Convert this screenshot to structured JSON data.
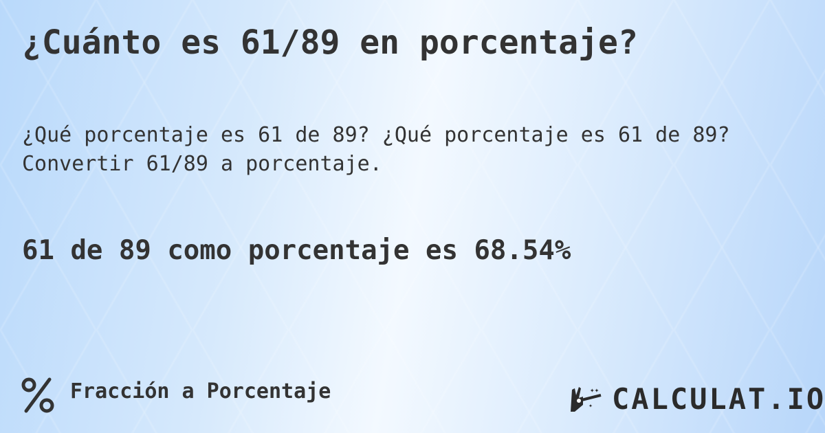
{
  "title": "¿Cuánto es 61/89 en porcentaje?",
  "subtitle_line1": "¿Qué porcentaje es 61 de 89? ¿Qué porcentaje es 61 de 89?",
  "subtitle_line2": "Convertir 61/89 a porcentaje.",
  "result": "61 de 89 como porcentaje es 68.54%",
  "footer": {
    "icon": "percent-icon",
    "label": "Fracción a Porcentaje"
  },
  "logo": {
    "text": "CALCULAT.IO",
    "icon": "magic-wand-hand-icon"
  },
  "colors": {
    "text": "#333333",
    "background": "#cfe4fb"
  }
}
